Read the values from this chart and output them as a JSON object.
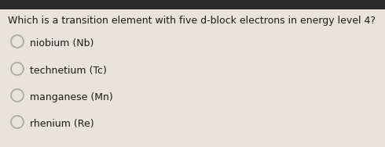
{
  "question": "Which is a transition element with five d-block electrons in energy level 4?",
  "choices": [
    "niobium (Nb)",
    "technetium (Tc)",
    "manganese (Mn)",
    "rhenium (Re)"
  ],
  "background_color": "#e8e4dc",
  "top_bar_color": "#2a2a2a",
  "text_color": "#1a1a1a",
  "question_fontsize": 9.0,
  "choice_fontsize": 9.0,
  "circle_color": "#aaaaaa",
  "top_bar_height": 0.07
}
